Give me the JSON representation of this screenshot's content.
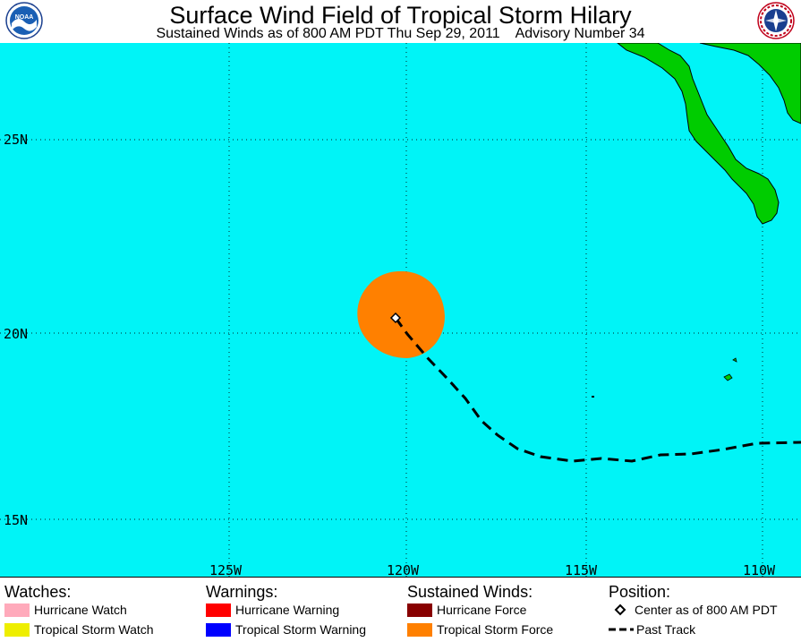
{
  "header": {
    "title": "Surface Wind Field of Tropical Storm Hilary",
    "subtitle": "Sustained Winds as of 800 AM PDT Thu Sep 29, 2011    Advisory Number 34",
    "left_logo": {
      "icon": "noaa-logo-icon",
      "text": "NOAA"
    },
    "right_logo": {
      "icon": "nws-logo-icon"
    }
  },
  "map": {
    "ocean_color": "#00f4f7",
    "land_color": "#00cc00",
    "lat_labels": [
      "25N",
      "20N",
      "15N"
    ],
    "lon_labels": [
      "125W",
      "120W",
      "115W",
      "110W"
    ],
    "storm_center": {
      "lat": 20.4,
      "lon": 120.2
    },
    "tropical_storm_force_color": "#ff8000"
  },
  "legend": {
    "watches": {
      "title": "Watches:",
      "items": [
        {
          "label": "Hurricane Watch",
          "color": "#ffaabb"
        },
        {
          "label": "Tropical Storm Watch",
          "color": "#eeee00"
        }
      ]
    },
    "warnings": {
      "title": "Warnings:",
      "items": [
        {
          "label": "Hurricane Warning",
          "color": "#ff0000"
        },
        {
          "label": "Tropical Storm Warning",
          "color": "#0000ff"
        }
      ]
    },
    "winds": {
      "title": "Sustained Winds:",
      "items": [
        {
          "label": "Hurricane Force",
          "color": "#880000"
        },
        {
          "label": "Tropical Storm Force",
          "color": "#ff8000"
        }
      ]
    },
    "position": {
      "title": "Position:",
      "center_label": "Center as of 800 AM PDT",
      "track_label": "Past Track"
    }
  }
}
